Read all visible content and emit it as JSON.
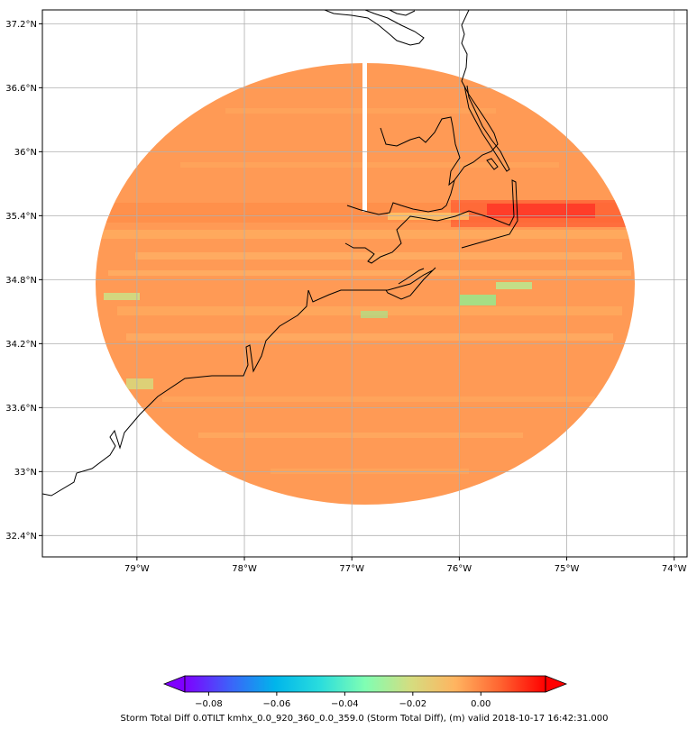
{
  "map": {
    "lat_labels": [
      {
        "value": 37.2,
        "label": "37.2°N"
      },
      {
        "value": 36.6,
        "label": "36.6°N"
      },
      {
        "value": 36.0,
        "label": "36°N"
      },
      {
        "value": 35.4,
        "label": "35.4°N"
      },
      {
        "value": 34.8,
        "label": "34.8°N"
      },
      {
        "value": 34.2,
        "label": "34.2°N"
      },
      {
        "value": 33.6,
        "label": "33.6°N"
      },
      {
        "value": 33.0,
        "label": "33°N"
      },
      {
        "value": 32.4,
        "label": "32.4°N"
      }
    ],
    "lon_labels": [
      {
        "value": -79,
        "label": "79°W"
      },
      {
        "value": -78,
        "label": "78°W"
      },
      {
        "value": -77,
        "label": "77°W"
      },
      {
        "value": -76,
        "label": "76°W"
      },
      {
        "value": -75,
        "label": "75°W"
      },
      {
        "value": -74,
        "label": "74°W"
      }
    ],
    "lon_range": [
      -79.88,
      -73.88
    ],
    "lat_range": [
      32.2,
      37.33
    ],
    "radar_center": {
      "lon": -76.88,
      "lat": 34.78
    },
    "colors": {
      "field": "#ff9a55",
      "field_warm": "#ff7a3a",
      "hot": "#ff2020",
      "cool": "#9ce68a",
      "mid": "#ffd070",
      "coast": "#000000",
      "grid": "#b0b0b0"
    }
  },
  "colorbar": {
    "ticks": [
      {
        "value": -0.08,
        "label": "−0.08"
      },
      {
        "value": -0.06,
        "label": "−0.06"
      },
      {
        "value": -0.04,
        "label": "−0.04"
      },
      {
        "value": -0.02,
        "label": "−0.02"
      },
      {
        "value": 0.0,
        "label": "0.00"
      }
    ],
    "range": [
      -0.087,
      0.019
    ],
    "colors": [
      "#7f00ff",
      "#3d62f9",
      "#00b5eb",
      "#2adddd",
      "#80feb3",
      "#d4dd80",
      "#ffb460",
      "#ff6330",
      "#ff0000"
    ],
    "caption": "Storm Total Diff 0.0TILT kmhx_0.0_920_360_0.0_359.0 (Storm Total Diff), (m) valid 2018-10-17 16:42:31.000"
  }
}
